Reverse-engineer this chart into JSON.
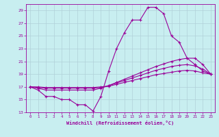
{
  "xlabel": "Windchill (Refroidissement éolien,°C)",
  "bg_color": "#c8eef0",
  "line_color": "#990099",
  "grid_color": "#b0d0d8",
  "xlim": [
    -0.5,
    23.5
  ],
  "ylim": [
    13,
    30
  ],
  "yticks": [
    13,
    15,
    17,
    19,
    21,
    23,
    25,
    27,
    29
  ],
  "xticks": [
    0,
    1,
    2,
    3,
    4,
    5,
    6,
    7,
    8,
    9,
    10,
    11,
    12,
    13,
    14,
    15,
    16,
    17,
    18,
    19,
    20,
    21,
    22,
    23
  ],
  "line1_y": [
    17,
    16.5,
    15.5,
    15.5,
    15.0,
    15.0,
    14.2,
    14.2,
    13.2,
    15.5,
    19.5,
    23.0,
    25.5,
    27.5,
    27.5,
    29.5,
    29.5,
    28.5,
    25.0,
    24.0,
    21.5,
    20.5,
    19.5,
    19.0
  ],
  "line2_y": [
    17,
    16.8,
    16.5,
    16.5,
    16.5,
    16.5,
    16.5,
    16.5,
    16.5,
    16.8,
    17.2,
    17.7,
    18.2,
    18.7,
    19.2,
    19.7,
    20.2,
    20.6,
    21.0,
    21.3,
    21.5,
    21.5,
    20.5,
    19.0
  ],
  "line3_y": [
    17,
    16.9,
    16.8,
    16.8,
    16.8,
    16.8,
    16.8,
    16.8,
    16.8,
    16.9,
    17.2,
    17.6,
    18.0,
    18.4,
    18.8,
    19.2,
    19.6,
    19.9,
    20.2,
    20.4,
    20.5,
    20.3,
    19.8,
    19.0
  ],
  "line4_y": [
    17,
    17.0,
    16.9,
    16.9,
    16.9,
    16.9,
    16.9,
    16.9,
    16.9,
    17.0,
    17.1,
    17.4,
    17.7,
    18.0,
    18.3,
    18.6,
    18.9,
    19.1,
    19.3,
    19.5,
    19.6,
    19.5,
    19.2,
    19.0
  ]
}
